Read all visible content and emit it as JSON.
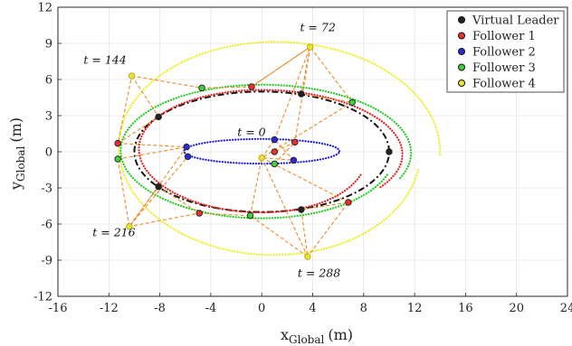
{
  "chart_data": {
    "type": "scatter",
    "xlabel": "x",
    "xlabel_sub": "Global",
    "xlabel_unit": "(m)",
    "ylabel": "y",
    "ylabel_sub": "Global",
    "ylabel_unit": "(m)",
    "xlim": [
      -16,
      24
    ],
    "ylim": [
      -12,
      12
    ],
    "xticks": [
      -16,
      -12,
      -8,
      -4,
      0,
      4,
      8,
      12,
      16,
      20,
      24
    ],
    "yticks": [
      -12,
      -9,
      -6,
      -3,
      0,
      3,
      6,
      9,
      12
    ],
    "grid": true,
    "legend_position": "top-right",
    "legend": [
      {
        "name": "Virtual Leader",
        "color": "#222222"
      },
      {
        "name": "Follower 1",
        "color": "#e8312b"
      },
      {
        "name": "Follower 2",
        "color": "#2b2bd8"
      },
      {
        "name": "Follower 3",
        "color": "#3fcf3f"
      },
      {
        "name": "Follower 4",
        "color": "#e6e62e"
      }
    ],
    "trajectories": [
      {
        "series": "Virtual Leader",
        "color": "#111111",
        "style": "dashdot",
        "kind": "ellipse",
        "cx": 0,
        "cy": 0,
        "rx": 10,
        "ry": 5,
        "t0": 0,
        "t1": 6.2832,
        "n": 240
      },
      {
        "series": "Follower 1",
        "color": "#e02020",
        "style": "dotted",
        "kind": "spiral",
        "cx": 0,
        "cy": 0,
        "rx0": 11.3,
        "ry0": 5.2,
        "rx1": 8.4,
        "ry1": 5.0,
        "t0": -0.6,
        "t1": 5.9,
        "n": 380
      },
      {
        "series": "Follower 3",
        "color": "#22cc22",
        "style": "dotted",
        "kind": "spiral",
        "cx": 0,
        "cy": 0,
        "rx0": 11.8,
        "ry0": 5.6,
        "rx1": 10.5,
        "ry1": 5.5,
        "t0": -0.4,
        "t1": 5.95,
        "n": 380
      },
      {
        "series": "Follower 4",
        "color": "#eeee22",
        "style": "dotted",
        "kind": "spiral",
        "cx": 1.0,
        "cy": 0.2,
        "rx0": 13.0,
        "ry0": 9.0,
        "rx1": 11.5,
        "ry1": 8.7,
        "t0": -0.05,
        "t1": 6.1,
        "n": 420
      },
      {
        "series": "Follower 2",
        "color": "#1a1ae0",
        "style": "dotted",
        "kind": "spiral",
        "cx": 0,
        "cy": 0.05,
        "rx0": 6.1,
        "ry0": 1.0,
        "rx1": 6.1,
        "ry1": 1.05,
        "t0": 0,
        "t1": 6.2832,
        "n": 260
      }
    ],
    "annotations": [
      {
        "text": "t = 72",
        "x": 4.4,
        "y": 10.0
      },
      {
        "text": "t = 144",
        "x": -12.3,
        "y": 7.3
      },
      {
        "text": "t = 0",
        "x": -0.8,
        "y": 1.3
      },
      {
        "text": "t = 216",
        "x": -11.6,
        "y": -7.0
      },
      {
        "text": "t = 288",
        "x": 4.5,
        "y": -10.4
      }
    ],
    "formations": [
      {
        "t": 0,
        "points": [
          {
            "series": "Virtual Leader",
            "x": 10.0,
            "y": 0.0
          },
          {
            "series": "Follower 2",
            "x": 1.0,
            "y": 1.0
          },
          {
            "series": "Follower 2",
            "x": 2.5,
            "y": -0.7
          },
          {
            "series": "Follower 1",
            "x": 2.6,
            "y": 0.8
          },
          {
            "series": "Follower 1",
            "x": 1.0,
            "y": 0.0
          },
          {
            "series": "Follower 4",
            "x": 0.0,
            "y": -0.5
          },
          {
            "series": "Follower 3",
            "x": 1.0,
            "y": -1.0
          }
        ]
      },
      {
        "t": 72,
        "points": [
          {
            "series": "Follower 4",
            "x": 3.8,
            "y": 8.7
          },
          {
            "series": "Virtual Leader",
            "x": 3.1,
            "y": 4.8
          },
          {
            "series": "Follower 1",
            "x": -0.8,
            "y": 5.4
          },
          {
            "series": "Follower 3",
            "x": 7.1,
            "y": 4.1
          }
        ]
      },
      {
        "t": 144,
        "points": [
          {
            "series": "Follower 4",
            "x": -10.2,
            "y": 6.3
          },
          {
            "series": "Follower 3",
            "x": -4.7,
            "y": 5.3
          },
          {
            "series": "Virtual Leader",
            "x": -8.1,
            "y": 2.9
          },
          {
            "series": "Follower 1",
            "x": -11.3,
            "y": 0.7
          }
        ]
      },
      {
        "t": 216,
        "points": [
          {
            "series": "Follower 2",
            "x": -5.9,
            "y": 0.4
          },
          {
            "series": "Follower 2",
            "x": -5.8,
            "y": -0.4
          },
          {
            "series": "Follower 3",
            "x": -11.3,
            "y": -0.6
          },
          {
            "series": "Virtual Leader",
            "x": -8.1,
            "y": -2.9
          },
          {
            "series": "Follower 1",
            "x": -4.9,
            "y": -5.1
          },
          {
            "series": "Follower 4",
            "x": -10.4,
            "y": -6.2
          }
        ]
      },
      {
        "t": 288,
        "points": [
          {
            "series": "Follower 3",
            "x": -0.9,
            "y": -5.3
          },
          {
            "series": "Virtual Leader",
            "x": 3.1,
            "y": -4.8
          },
          {
            "series": "Follower 1",
            "x": 6.8,
            "y": -4.2
          },
          {
            "series": "Follower 4",
            "x": 3.6,
            "y": -8.7
          }
        ]
      }
    ],
    "formation_links": [
      [
        [
          -0.8,
          5.4
        ],
        [
          3.8,
          8.7
        ],
        [
          3.1,
          4.8
        ],
        [
          7.1,
          4.1
        ],
        [
          3.8,
          8.7
        ]
      ],
      [
        [
          -10.2,
          6.3
        ],
        [
          -4.7,
          5.3
        ],
        [
          -0.8,
          5.4
        ],
        [
          3.8,
          8.7
        ]
      ],
      [
        [
          -10.2,
          6.3
        ],
        [
          -8.1,
          2.9
        ],
        [
          -11.3,
          0.7
        ],
        [
          -10.2,
          6.3
        ]
      ],
      [
        [
          -11.3,
          0.7
        ],
        [
          -5.9,
          0.4
        ],
        [
          -11.3,
          -0.6
        ]
      ],
      [
        [
          -5.9,
          0.4
        ],
        [
          -10.4,
          -6.2
        ],
        [
          -5.8,
          -0.4
        ]
      ],
      [
        [
          -11.3,
          -0.6
        ],
        [
          -10.4,
          -6.2
        ],
        [
          -8.1,
          -2.9
        ],
        [
          -4.9,
          -5.1
        ],
        [
          -10.4,
          -6.2
        ]
      ],
      [
        [
          -4.9,
          -5.1
        ],
        [
          -0.9,
          -5.3
        ],
        [
          3.6,
          -8.7
        ],
        [
          3.1,
          -4.8
        ],
        [
          6.8,
          -4.2
        ],
        [
          3.6,
          -8.7
        ]
      ],
      [
        [
          -0.9,
          -5.3
        ],
        [
          0.0,
          -0.5
        ],
        [
          3.6,
          -8.7
        ]
      ],
      [
        [
          0.0,
          -0.5
        ],
        [
          1.0,
          1.0
        ],
        [
          2.5,
          -0.7
        ],
        [
          0.0,
          -0.5
        ]
      ],
      [
        [
          1.0,
          -1.0
        ],
        [
          2.6,
          0.8
        ],
        [
          1.0,
          0.0
        ]
      ],
      [
        [
          1.0,
          1.0
        ],
        [
          3.8,
          8.7
        ],
        [
          2.6,
          0.8
        ]
      ],
      [
        [
          7.1,
          4.1
        ],
        [
          0.0,
          -0.5
        ],
        [
          6.8,
          -4.2
        ]
      ]
    ]
  }
}
